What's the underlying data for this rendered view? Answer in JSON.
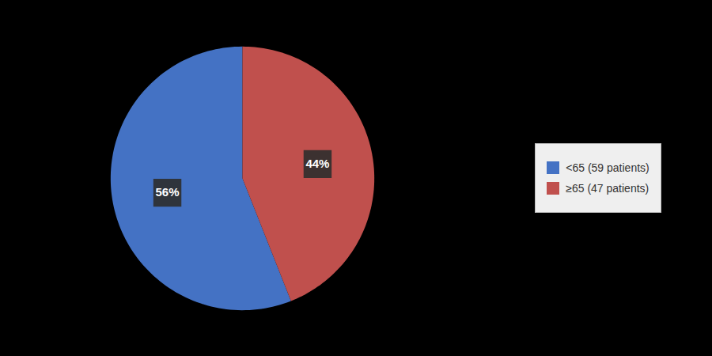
{
  "chart_data": {
    "type": "pie",
    "categories": [
      "<65 (59 patients)",
      "≥65 (47 patients)"
    ],
    "values": [
      56,
      44
    ],
    "value_labels": [
      "56%",
      "44%"
    ],
    "data_labels": true,
    "colors": [
      "#4472C4",
      "#C0504D"
    ],
    "legend": "right"
  }
}
